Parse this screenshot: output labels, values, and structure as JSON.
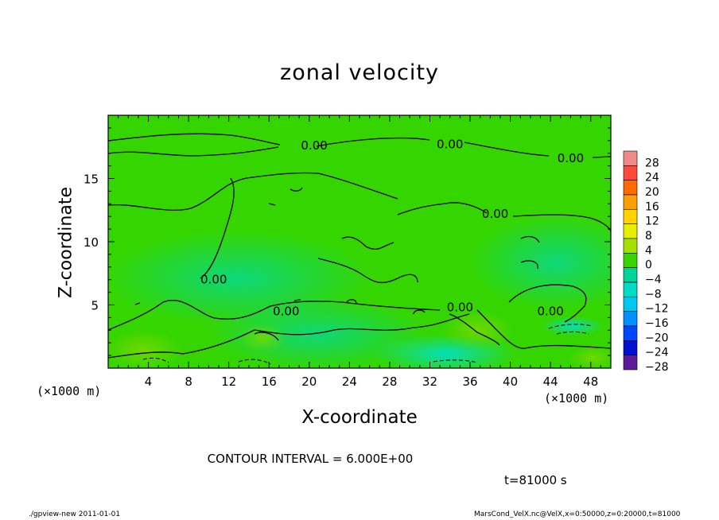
{
  "chart_data": {
    "type": "heatmap",
    "title": "zonal velocity",
    "xlabel": "X-coordinate",
    "ylabel": "Z-coordinate",
    "x_unit_label_left": "(×1000 m)",
    "x_unit_label_right": "(×1000 m)",
    "xlim": [
      0,
      50
    ],
    "ylim": [
      0,
      20
    ],
    "x_ticks": [
      4,
      8,
      12,
      16,
      20,
      24,
      28,
      32,
      36,
      40,
      44,
      48
    ],
    "y_ticks": [
      5,
      10,
      15
    ],
    "colorbar": {
      "levels": [
        28,
        24,
        20,
        16,
        12,
        8,
        4,
        0,
        -4,
        -8,
        -12,
        -16,
        -20,
        -24,
        -28
      ],
      "labels": [
        "28",
        "24",
        "20",
        "16",
        "12",
        "8",
        "4",
        "0",
        "−4",
        "−8",
        "−12",
        "−16",
        "−20",
        "−24",
        "−28"
      ],
      "colors": [
        "#f08a8a",
        "#ff4a3a",
        "#ff6a00",
        "#ff9e00",
        "#ffd200",
        "#e8ee00",
        "#a6e000",
        "#3ad400",
        "#00d49a",
        "#00dcc8",
        "#00c8f0",
        "#0090ff",
        "#0048ff",
        "#0010d0",
        "#5a1a9a"
      ]
    },
    "contour_labels": [
      {
        "text": "0.00",
        "x": 20.5,
        "y": 17.6
      },
      {
        "text": "0.00",
        "x": 34,
        "y": 17.7
      },
      {
        "text": "0.00",
        "x": 46,
        "y": 16.6
      },
      {
        "text": "0.00",
        "x": 38.5,
        "y": 12.2
      },
      {
        "text": "0.00",
        "x": 35,
        "y": 4.8
      },
      {
        "text": "0.00",
        "x": 44,
        "y": 4.5
      },
      {
        "text": "0.00",
        "x": 10.5,
        "y": 7.0
      },
      {
        "text": "0.00",
        "x": 17.7,
        "y": 4.5
      }
    ],
    "contour_interval": 6.0
  },
  "annotations": {
    "contour_interval": "CONTOUR INTERVAL = 6.000E+00",
    "time": "t=81000 s",
    "footer_left": "./gpview-new   2011-01-01",
    "footer_right": "MarsCond_VelX.nc@VelX,x=0:50000,z=0:20000,t=81000"
  }
}
